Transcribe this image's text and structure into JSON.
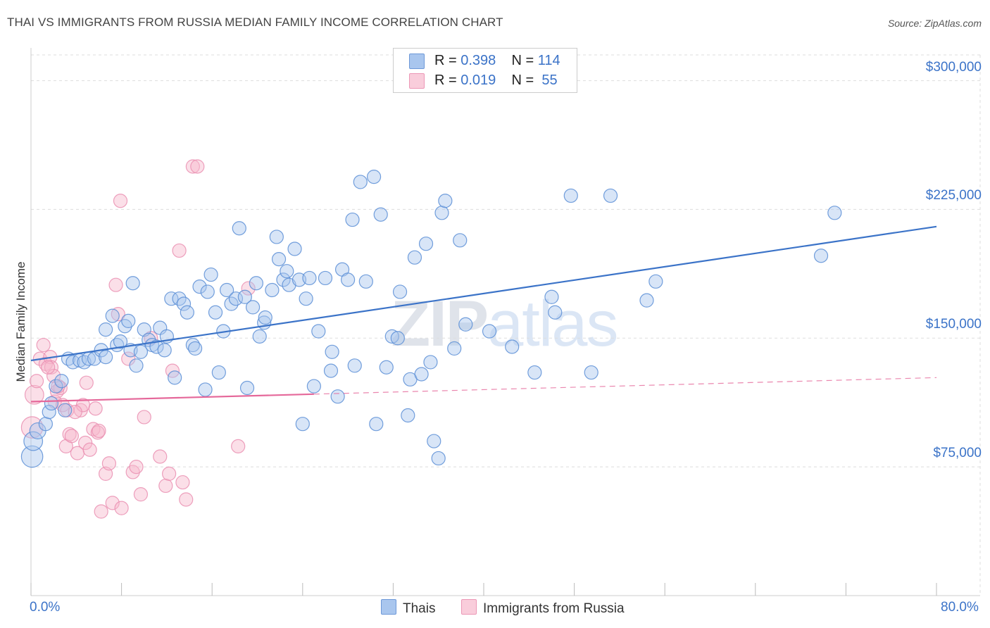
{
  "title": "THAI VS IMMIGRANTS FROM RUSSIA MEDIAN FAMILY INCOME CORRELATION CHART",
  "source": "Source: ZipAtlas.com",
  "watermark": {
    "zip": "ZIP",
    "atlas": "atlas"
  },
  "colors": {
    "blue": "#3b73c8",
    "blue_fill": "#a9c6ee",
    "pink": "#e5689a",
    "pink_fill": "#f6b8cd",
    "grid": "#dddddd"
  },
  "legend_top": {
    "rows": [
      {
        "r_label": "R = ",
        "r_value": "0.398",
        "n_label": "N = ",
        "n_value": "114",
        "series": "blue"
      },
      {
        "r_label": "R = ",
        "r_value": "0.019",
        "n_label": "N = ",
        "n_value": " 55",
        "series": "pink"
      }
    ]
  },
  "legend_bottom": [
    {
      "label": "Thais",
      "series": "blue"
    },
    {
      "label": "Immigrants from Russia",
      "series": "pink"
    }
  ],
  "chart_data": {
    "type": "scatter",
    "title": "THAI VS IMMIGRANTS FROM RUSSIA MEDIAN FAMILY INCOME CORRELATION CHART",
    "xlabel": "",
    "ylabel": "Median Family Income",
    "xlim": [
      0,
      80
    ],
    "ylim": [
      0,
      315000
    ],
    "x_tick_labels": [
      "0.0%",
      "80.0%"
    ],
    "y_ticks": [
      {
        "value": 75000,
        "label": "$75,000"
      },
      {
        "value": 150000,
        "label": "$150,000"
      },
      {
        "value": 225000,
        "label": "$225,000"
      },
      {
        "value": 300000,
        "label": "$300,000"
      }
    ],
    "series": [
      {
        "name": "Thais",
        "color": "blue",
        "trend": {
          "x": [
            0,
            80
          ],
          "y": [
            137000,
            215000
          ],
          "dashed_from": null
        },
        "points": [
          [
            0.1,
            81000,
            1.6
          ],
          [
            0.2,
            90000,
            1.4
          ],
          [
            0.6,
            96000,
            1.2
          ],
          [
            1.3,
            100000,
            1.0
          ],
          [
            1.6,
            107000,
            1.0
          ],
          [
            1.8,
            112000,
            1.0
          ],
          [
            2.2,
            122000,
            1.0
          ],
          [
            2.7,
            125000,
            1.0
          ],
          [
            3.0,
            108000,
            1.0
          ],
          [
            3.3,
            138000,
            1.0
          ],
          [
            3.7,
            136000,
            1.0
          ],
          [
            4.3,
            137000,
            1.0
          ],
          [
            4.7,
            136000,
            1.0
          ],
          [
            5.1,
            138000,
            1.0
          ],
          [
            5.6,
            138000,
            1.0
          ],
          [
            6.2,
            143000,
            1.0
          ],
          [
            6.6,
            139000,
            1.0
          ],
          [
            6.6,
            155000,
            1.0
          ],
          [
            7.2,
            163000,
            1.0
          ],
          [
            7.6,
            146000,
            1.0
          ],
          [
            7.9,
            148000,
            1.0
          ],
          [
            8.3,
            157000,
            1.0
          ],
          [
            8.6,
            160000,
            1.0
          ],
          [
            8.8,
            143000,
            1.0
          ],
          [
            9.0,
            182000,
            1.0
          ],
          [
            9.3,
            134000,
            1.0
          ],
          [
            9.7,
            142000,
            1.0
          ],
          [
            10.0,
            155000,
            1.0
          ],
          [
            10.4,
            149000,
            1.0
          ],
          [
            10.7,
            146000,
            1.0
          ],
          [
            11.1,
            145000,
            1.0
          ],
          [
            11.4,
            156000,
            1.0
          ],
          [
            11.8,
            143000,
            1.0
          ],
          [
            12.0,
            151000,
            1.0
          ],
          [
            12.4,
            173000,
            1.0
          ],
          [
            12.7,
            127000,
            1.0
          ],
          [
            13.1,
            173000,
            1.0
          ],
          [
            13.5,
            170000,
            1.0
          ],
          [
            13.8,
            165000,
            1.0
          ],
          [
            14.3,
            146000,
            1.0
          ],
          [
            14.5,
            144000,
            1.0
          ],
          [
            14.9,
            180000,
            1.0
          ],
          [
            15.4,
            120000,
            1.0
          ],
          [
            15.6,
            177000,
            1.0
          ],
          [
            15.9,
            187000,
            1.0
          ],
          [
            16.3,
            165000,
            1.0
          ],
          [
            16.6,
            130000,
            1.0
          ],
          [
            17.0,
            154000,
            1.0
          ],
          [
            17.3,
            178000,
            1.0
          ],
          [
            17.7,
            170000,
            1.0
          ],
          [
            18.1,
            173000,
            1.0
          ],
          [
            18.4,
            214000,
            1.0
          ],
          [
            18.9,
            174000,
            1.0
          ],
          [
            19.1,
            121000,
            1.0
          ],
          [
            19.6,
            168000,
            1.0
          ],
          [
            19.9,
            182000,
            1.0
          ],
          [
            20.2,
            151000,
            1.0
          ],
          [
            20.6,
            159000,
            1.0
          ],
          [
            20.7,
            162000,
            1.0
          ],
          [
            21.3,
            178000,
            1.0
          ],
          [
            21.7,
            209000,
            1.0
          ],
          [
            21.9,
            196000,
            1.0
          ],
          [
            22.3,
            184000,
            1.0
          ],
          [
            22.6,
            189000,
            1.0
          ],
          [
            22.8,
            181000,
            1.0
          ],
          [
            23.3,
            202000,
            1.0
          ],
          [
            23.7,
            184000,
            1.0
          ],
          [
            24.0,
            100000,
            1.0
          ],
          [
            24.3,
            173000,
            1.0
          ],
          [
            24.6,
            185000,
            1.0
          ],
          [
            25.0,
            122000,
            1.0
          ],
          [
            25.4,
            154000,
            1.0
          ],
          [
            26.0,
            185000,
            1.0
          ],
          [
            26.5,
            131000,
            1.0
          ],
          [
            26.6,
            142000,
            1.0
          ],
          [
            27.1,
            116000,
            1.0
          ],
          [
            27.5,
            190000,
            1.0
          ],
          [
            28.0,
            184000,
            1.0
          ],
          [
            28.4,
            219000,
            1.0
          ],
          [
            28.6,
            134000,
            1.0
          ],
          [
            29.1,
            241000,
            1.0
          ],
          [
            29.6,
            183000,
            1.0
          ],
          [
            30.3,
            244000,
            1.0
          ],
          [
            30.5,
            100000,
            1.0
          ],
          [
            30.9,
            222000,
            1.0
          ],
          [
            31.4,
            133000,
            1.0
          ],
          [
            31.9,
            151000,
            1.0
          ],
          [
            32.4,
            150000,
            1.0
          ],
          [
            32.6,
            177000,
            1.0
          ],
          [
            33.3,
            105000,
            1.0
          ],
          [
            33.5,
            126000,
            1.0
          ],
          [
            33.9,
            197000,
            1.0
          ],
          [
            34.5,
            129000,
            1.0
          ],
          [
            34.9,
            205000,
            1.0
          ],
          [
            35.3,
            136000,
            1.0
          ],
          [
            35.6,
            90000,
            1.0
          ],
          [
            36.0,
            80000,
            1.0
          ],
          [
            36.3,
            223000,
            1.0
          ],
          [
            36.6,
            230000,
            1.0
          ],
          [
            37.4,
            144000,
            1.0
          ],
          [
            37.9,
            207000,
            1.0
          ],
          [
            38.4,
            158000,
            1.0
          ],
          [
            40.5,
            154000,
            1.0
          ],
          [
            42.5,
            145000,
            1.0
          ],
          [
            44.5,
            130000,
            1.0
          ],
          [
            46.0,
            174000,
            1.0
          ],
          [
            46.3,
            165000,
            1.0
          ],
          [
            47.7,
            233000,
            1.0
          ],
          [
            49.5,
            130000,
            1.0
          ],
          [
            51.2,
            233000,
            1.0
          ],
          [
            54.4,
            172000,
            1.0
          ],
          [
            55.2,
            183000,
            1.0
          ],
          [
            69.8,
            198000,
            1.0
          ],
          [
            71.0,
            223000,
            1.0
          ]
        ]
      },
      {
        "name": "Immigrants from Russia",
        "color": "pink",
        "trend": {
          "x": [
            0,
            80
          ],
          "y": [
            113000,
            127000
          ],
          "dashed_from": 25
        },
        "points": [
          [
            0.1,
            98000,
            1.6
          ],
          [
            0.3,
            117000,
            1.4
          ],
          [
            0.5,
            125000,
            1.0
          ],
          [
            0.8,
            138000,
            1.0
          ],
          [
            1.1,
            146000,
            1.0
          ],
          [
            1.3,
            135000,
            1.0
          ],
          [
            1.7,
            139000,
            1.0
          ],
          [
            1.8,
            133000,
            1.0
          ],
          [
            2.0,
            128000,
            1.0
          ],
          [
            2.1,
            113000,
            1.0
          ],
          [
            2.3,
            119000,
            1.0
          ],
          [
            2.6,
            121000,
            1.0
          ],
          [
            2.8,
            111000,
            1.0
          ],
          [
            3.1,
            87000,
            1.0
          ],
          [
            3.2,
            108000,
            1.0
          ],
          [
            3.4,
            94000,
            1.0
          ],
          [
            3.6,
            93000,
            1.0
          ],
          [
            4.1,
            83000,
            1.0
          ],
          [
            4.4,
            108000,
            1.0
          ],
          [
            4.6,
            111000,
            1.0
          ],
          [
            4.8,
            89000,
            1.0
          ],
          [
            4.9,
            124000,
            1.0
          ],
          [
            5.2,
            85000,
            1.0
          ],
          [
            5.5,
            97000,
            1.0
          ],
          [
            5.7,
            109000,
            1.0
          ],
          [
            5.9,
            95000,
            1.0
          ],
          [
            6.2,
            49000,
            1.0
          ],
          [
            6.6,
            71000,
            1.0
          ],
          [
            6.9,
            77000,
            1.0
          ],
          [
            7.2,
            54000,
            1.0
          ],
          [
            7.5,
            181000,
            1.0
          ],
          [
            7.7,
            164000,
            1.0
          ],
          [
            7.9,
            230000,
            1.0
          ],
          [
            8.0,
            51000,
            1.0
          ],
          [
            8.6,
            138000,
            1.0
          ],
          [
            9.0,
            72000,
            1.0
          ],
          [
            9.3,
            75000,
            1.0
          ],
          [
            9.7,
            59000,
            1.0
          ],
          [
            10.0,
            104000,
            1.0
          ],
          [
            10.6,
            150000,
            1.0
          ],
          [
            11.4,
            81000,
            1.0
          ],
          [
            11.9,
            64000,
            1.0
          ],
          [
            12.2,
            71000,
            1.0
          ],
          [
            12.5,
            131000,
            1.0
          ],
          [
            13.1,
            201000,
            1.0
          ],
          [
            13.4,
            66000,
            1.0
          ],
          [
            13.7,
            56000,
            1.0
          ],
          [
            14.3,
            250000,
            1.0
          ],
          [
            14.7,
            250000,
            1.0
          ],
          [
            18.3,
            87000,
            1.0
          ],
          [
            19.2,
            179000,
            1.0
          ],
          [
            2.4,
            122000,
            1.0
          ],
          [
            3.9,
            107000,
            1.0
          ],
          [
            1.5,
            133000,
            1.0
          ],
          [
            6.0,
            96000,
            1.0
          ]
        ]
      }
    ]
  }
}
